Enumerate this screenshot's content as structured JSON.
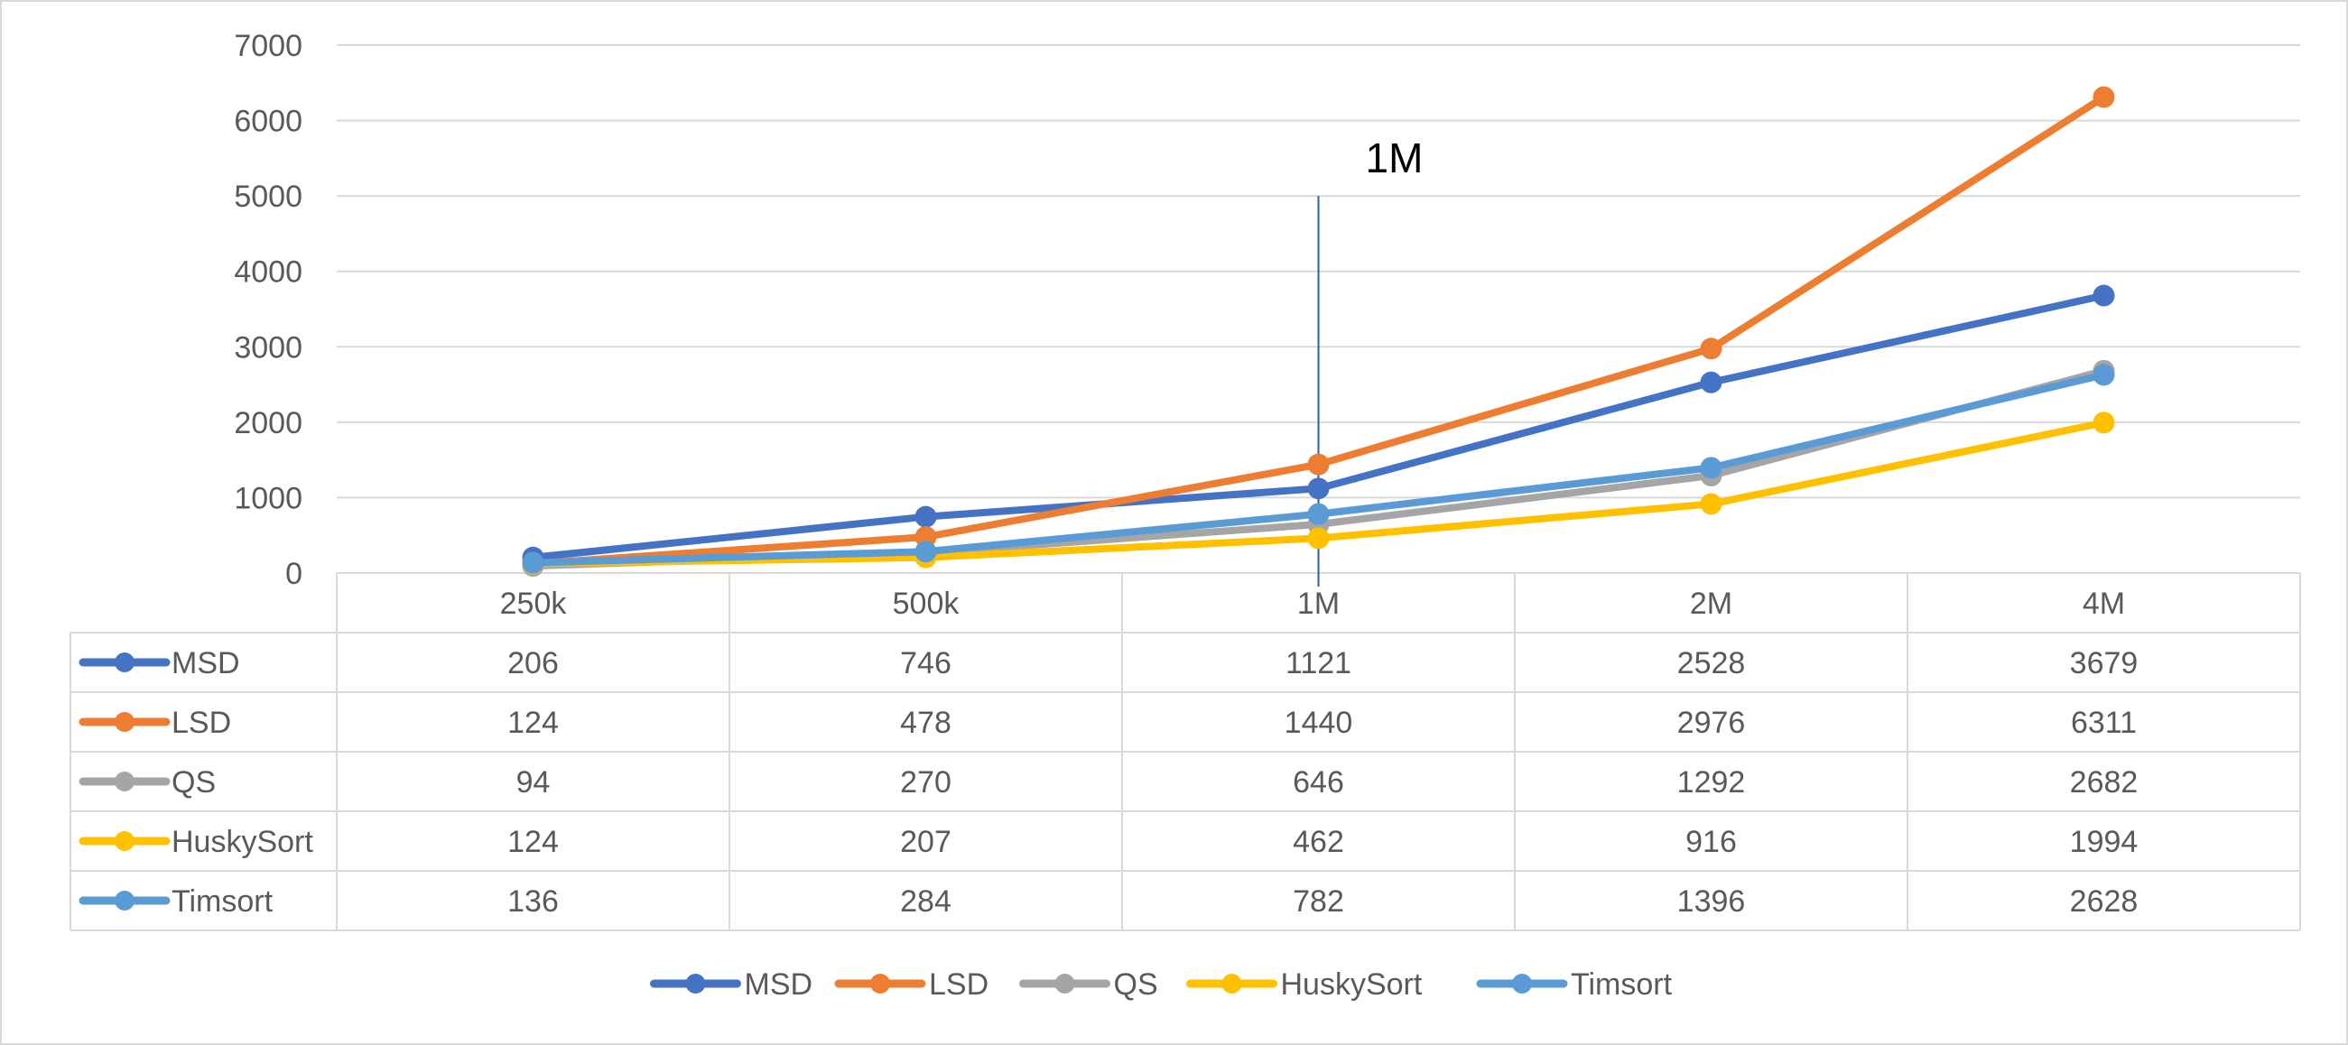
{
  "chart_data": {
    "type": "line",
    "categories": [
      "250k",
      "500k",
      "1M",
      "2M",
      "4M"
    ],
    "ylim": [
      0,
      7000
    ],
    "yticks": [
      0,
      1000,
      2000,
      3000,
      4000,
      5000,
      6000,
      7000
    ],
    "grid": true,
    "legend_position": "bottom",
    "data_table": true,
    "annotation": {
      "text": "1M",
      "x": "1M",
      "y_from": 0,
      "y_to": 5000
    },
    "series": [
      {
        "name": "MSD",
        "color": "#4472C4",
        "values": [
          206,
          746,
          1121,
          2528,
          3679
        ]
      },
      {
        "name": "LSD",
        "color": "#ED7D31",
        "values": [
          124,
          478,
          1440,
          2976,
          6311
        ]
      },
      {
        "name": "QS",
        "color": "#A5A5A5",
        "values": [
          94,
          270,
          646,
          1292,
          2682
        ]
      },
      {
        "name": "HuskySort",
        "color": "#FFC000",
        "values": [
          124,
          207,
          462,
          916,
          1994
        ]
      },
      {
        "name": "Timsort",
        "color": "#5B9BD5",
        "values": [
          136,
          284,
          782,
          1396,
          2628
        ]
      }
    ]
  }
}
